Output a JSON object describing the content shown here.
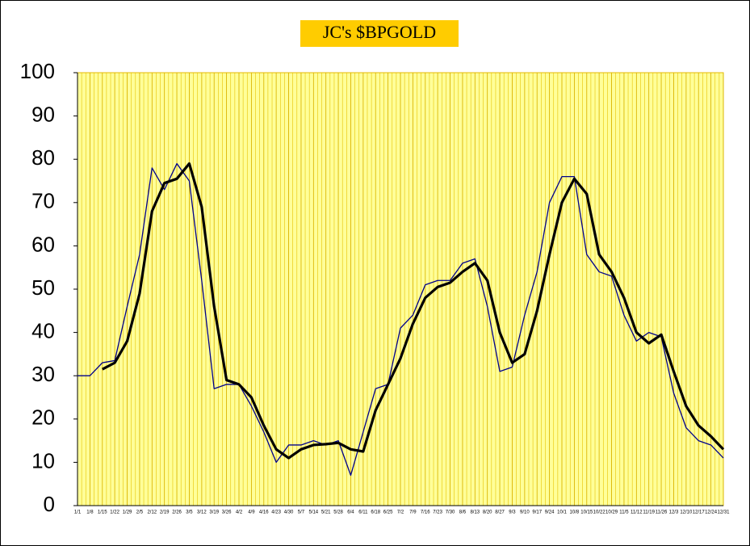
{
  "chart_data": {
    "type": "line",
    "title": "JC's $BPGOLD",
    "categories": [
      "1/1",
      "1/8",
      "1/15",
      "1/22",
      "1/29",
      "2/5",
      "2/12",
      "2/19",
      "2/26",
      "3/5",
      "3/12",
      "3/19",
      "3/26",
      "4/2",
      "4/9",
      "4/16",
      "4/23",
      "4/30",
      "5/7",
      "5/14",
      "5/21",
      "5/28",
      "6/4",
      "6/11",
      "6/18",
      "6/25",
      "7/2",
      "7/9",
      "7/16",
      "7/23",
      "7/30",
      "8/6",
      "8/13",
      "8/20",
      "8/27",
      "9/3",
      "9/10",
      "9/17",
      "9/24",
      "10/1",
      "10/8",
      "10/15",
      "10/22",
      "10/29",
      "11/5",
      "11/12",
      "11/19",
      "11/26",
      "12/3",
      "12/10",
      "12/17",
      "12/24",
      "12/31"
    ],
    "series": [
      {
        "color": "#00008b",
        "values": [
          30,
          30,
          33,
          33.5,
          46,
          58,
          78,
          73,
          79,
          75,
          52,
          27,
          28,
          28,
          23,
          17,
          10,
          14,
          14,
          15,
          14,
          15,
          7,
          17,
          27,
          28,
          41,
          44,
          51,
          52,
          52,
          56,
          57,
          46,
          31,
          32,
          44,
          54,
          70,
          76,
          76,
          58,
          54,
          53,
          44,
          38,
          40,
          39,
          26,
          18,
          15,
          14,
          11
        ]
      },
      {
        "color": "#000000",
        "values": [
          null,
          null,
          31.5,
          33,
          38,
          49,
          68,
          74.5,
          75.5,
          79,
          69,
          46,
          29,
          28,
          25,
          18.5,
          13,
          11,
          13,
          14,
          14.2,
          14.5,
          13,
          12.5,
          22,
          28,
          34,
          42,
          48,
          50.5,
          51.5,
          54,
          56,
          52,
          40,
          33,
          35,
          45,
          58,
          70,
          75.5,
          72,
          58,
          54,
          48,
          40,
          37.5,
          39.5,
          31,
          23,
          18.5,
          16,
          13
        ]
      }
    ],
    "ylim": [
      0,
      100
    ],
    "yticks": [
      0,
      10,
      20,
      30,
      40,
      50,
      60,
      70,
      80,
      90,
      100
    ],
    "grid": true
  }
}
